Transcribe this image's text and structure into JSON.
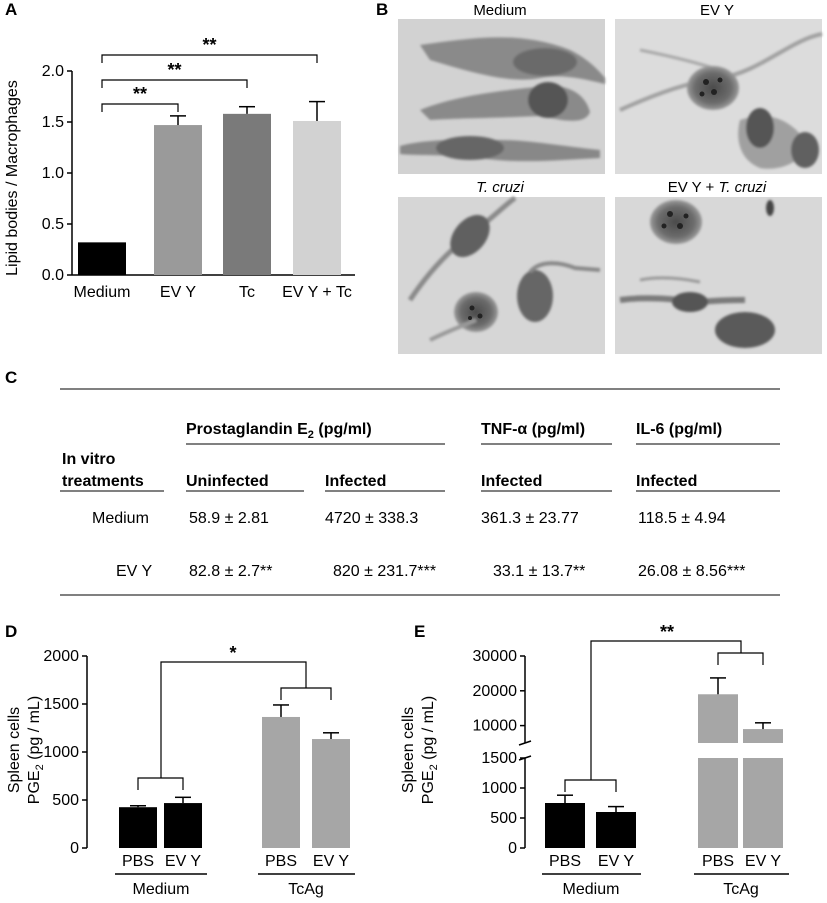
{
  "panels": {
    "a": "A",
    "b": "B",
    "c": "C",
    "d": "D",
    "e": "E"
  },
  "chart_data": [
    {
      "id": "A",
      "type": "bar",
      "categories": [
        "Medium",
        "EV Y",
        "Tc",
        "EV Y + Tc"
      ],
      "values": [
        0.32,
        1.47,
        1.58,
        1.51
      ],
      "errors": [
        0.0,
        0.09,
        0.07,
        0.19
      ],
      "colors": [
        "#000000",
        "#9a9a9a",
        "#7a7a7a",
        "#d2d2d2"
      ],
      "ylabel": "Lipid bodies / Macrophages",
      "ylim": [
        0,
        2.0
      ],
      "yticks": [
        "0.0",
        "0.5",
        "1.0",
        "1.5",
        "2.0"
      ],
      "significance": [
        {
          "from": 0,
          "to": 1,
          "label": "**"
        },
        {
          "from": 0,
          "to": 2,
          "label": "**"
        },
        {
          "from": 0,
          "to": 3,
          "label": "**"
        }
      ]
    },
    {
      "id": "D",
      "type": "bar",
      "categories": [
        "PBS",
        "EV Y",
        "PBS",
        "EV Y"
      ],
      "groups": [
        "Medium",
        "TcAg"
      ],
      "values": [
        425,
        468,
        1365,
        1135
      ],
      "errors": [
        15,
        60,
        125,
        65
      ],
      "colors": [
        "#000000",
        "#000000",
        "#a6a6a6",
        "#a6a6a6"
      ],
      "ylabel_line1": "Spleen cells",
      "ylabel_line2": "PGE",
      "ylabel_sub": "2",
      "ylabel_unit": " (pg / mL)",
      "ylim": [
        0,
        2000
      ],
      "yticks": [
        "0",
        "500",
        "1000",
        "1500",
        "2000"
      ],
      "significance": [
        {
          "label": "*"
        }
      ]
    },
    {
      "id": "E",
      "type": "bar",
      "categories": [
        "PBS",
        "EV Y",
        "PBS",
        "EV Y"
      ],
      "groups": [
        "Medium",
        "TcAg"
      ],
      "values": [
        750,
        600,
        19000,
        9000
      ],
      "errors": [
        130,
        90,
        4700,
        1800
      ],
      "colors": [
        "#000000",
        "#000000",
        "#a6a6a6",
        "#a6a6a6"
      ],
      "ylabel_line1": "Spleen cells",
      "ylabel_line2": "PGE",
      "ylabel_sub": "2",
      "ylabel_unit": " (pg / mL)",
      "ylim_lower": [
        0,
        1500
      ],
      "ylim_upper": [
        5000,
        30000
      ],
      "yticks_lower": [
        "0",
        "500",
        "1000",
        "1500"
      ],
      "yticks_upper": [
        "10000",
        "20000",
        "30000"
      ],
      "significance": [
        {
          "label": "**"
        }
      ]
    }
  ],
  "micrographs": {
    "medium": "Medium",
    "evy": "EV Y",
    "tcruzi": "T. cruzi",
    "evy_tcruzi_prefix": "EV Y + ",
    "evy_tcruzi_italic": "T. cruzi"
  },
  "table": {
    "pge_header": "Prostaglandin E",
    "pge_sub": "2",
    "pge_unit": " (pg/ml)",
    "tnf_header": "TNF-α (pg/ml)",
    "il6_header": "IL-6 (pg/ml)",
    "row_header_1": "In vitro",
    "row_header_2": "treatments",
    "sub_uninfected": "Uninfected",
    "sub_infected_1": "Infected",
    "sub_infected_2": "Infected",
    "sub_infected_3": "Infected",
    "rows": [
      {
        "label": "Medium",
        "pge_uninf": "58.9 ± 2.81",
        "pge_inf": "4720 ± 338.3",
        "tnf": "361.3 ± 23.77",
        "il6": "118.5 ± 4.94"
      },
      {
        "label": "EV Y",
        "pge_uninf": "82.8 ± 2.7**",
        "pge_inf": "820 ± 231.7***",
        "tnf": "33.1 ± 13.7**",
        "il6": "26.08 ± 8.56***"
      }
    ]
  }
}
